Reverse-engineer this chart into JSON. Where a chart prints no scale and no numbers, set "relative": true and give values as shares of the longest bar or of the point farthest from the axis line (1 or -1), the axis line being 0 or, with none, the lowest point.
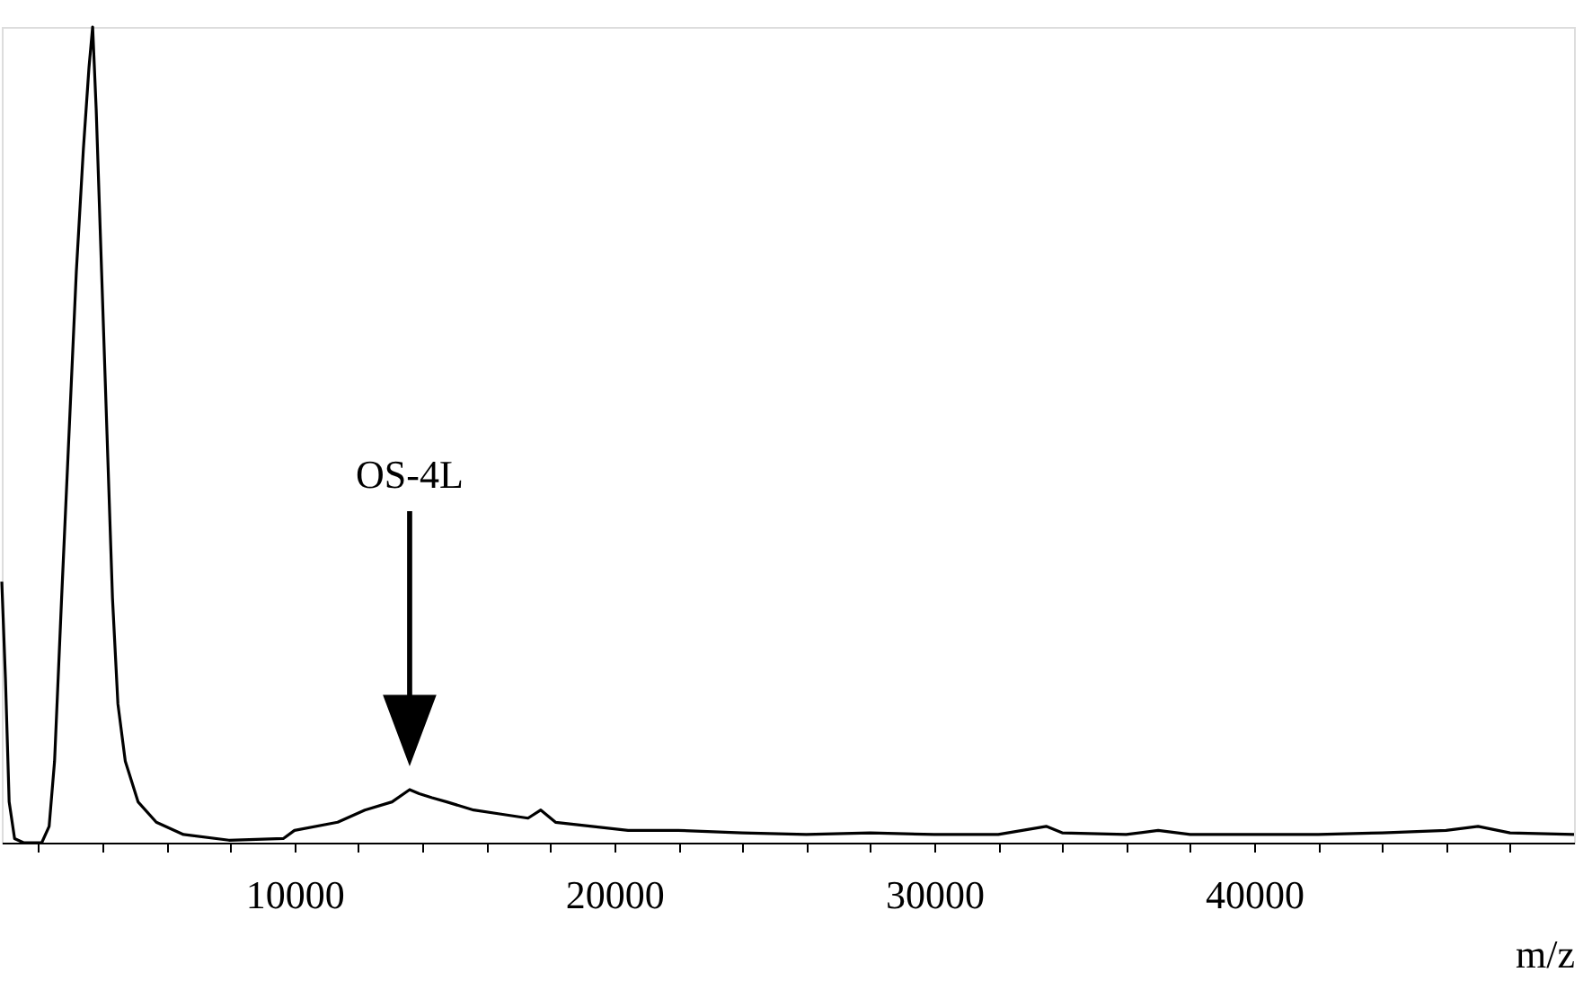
{
  "chart_data": {
    "type": "line",
    "relative": true,
    "xlabel": "m/z",
    "xlim": [
      850,
      50000
    ],
    "xticks": [
      {
        "value": 2000,
        "label": null
      },
      {
        "value": 4000,
        "label": null
      },
      {
        "value": 6000,
        "label": null
      },
      {
        "value": 8000,
        "label": null
      },
      10000,
      {
        "value": 12000,
        "label": null
      },
      {
        "value": 14000,
        "label": null
      },
      {
        "value": 16000,
        "label": null
      },
      {
        "value": 18000,
        "label": null
      },
      20000,
      {
        "value": 22000,
        "label": null
      },
      {
        "value": 24000,
        "label": null
      },
      {
        "value": 26000,
        "label": null
      },
      {
        "value": 28000,
        "label": null
      },
      30000,
      {
        "value": 32000,
        "label": null
      },
      {
        "value": 34000,
        "label": null
      },
      {
        "value": 36000,
        "label": null
      },
      {
        "value": 38000,
        "label": null
      },
      40000,
      {
        "value": 42000,
        "label": null
      },
      {
        "value": 44000,
        "label": null
      },
      {
        "value": 46000,
        "label": null
      },
      {
        "value": 48000,
        "label": null
      }
    ],
    "annotations": [
      "OS-4L"
    ],
    "grid": false,
    "marker": "none",
    "line_style": "solid",
    "series": [
      {
        "color": "#000000",
        "x": [
          850,
          965,
          1080,
          1250,
          1530,
          2100,
          2330,
          2500,
          2720,
          2950,
          3180,
          3400,
          3575,
          3690,
          3800,
          3970,
          4140,
          4310,
          4480,
          4710,
          5110,
          5680,
          6530,
          7950,
          9650,
          10000,
          11350,
          12200,
          13050,
          13600,
          13900,
          14300,
          14760,
          15600,
          16460,
          17300,
          17700,
          18160,
          19300,
          20430,
          22000,
          24000,
          26000,
          28000,
          30000,
          32000,
          33500,
          34000,
          36000,
          37000,
          38000,
          40000,
          42000,
          44000,
          46000,
          47000,
          48000,
          50000
        ],
        "values": [
          0.32,
          0.2,
          0.05,
          0.005,
          0,
          0,
          0.02,
          0.1,
          0.3,
          0.5,
          0.7,
          0.85,
          0.95,
          1.0,
          0.9,
          0.7,
          0.5,
          0.3,
          0.17,
          0.1,
          0.05,
          0.025,
          0.01,
          0.003,
          0.005,
          0.015,
          0.025,
          0.04,
          0.05,
          0.065,
          0.06,
          0.055,
          0.05,
          0.04,
          0.035,
          0.03,
          0.04,
          0.025,
          0.02,
          0.015,
          0.015,
          0.012,
          0.01,
          0.012,
          0.01,
          0.01,
          0.02,
          0.012,
          0.01,
          0.015,
          0.01,
          0.01,
          0.01,
          0.012,
          0.015,
          0.02,
          0.012,
          0.01
        ]
      }
    ]
  }
}
